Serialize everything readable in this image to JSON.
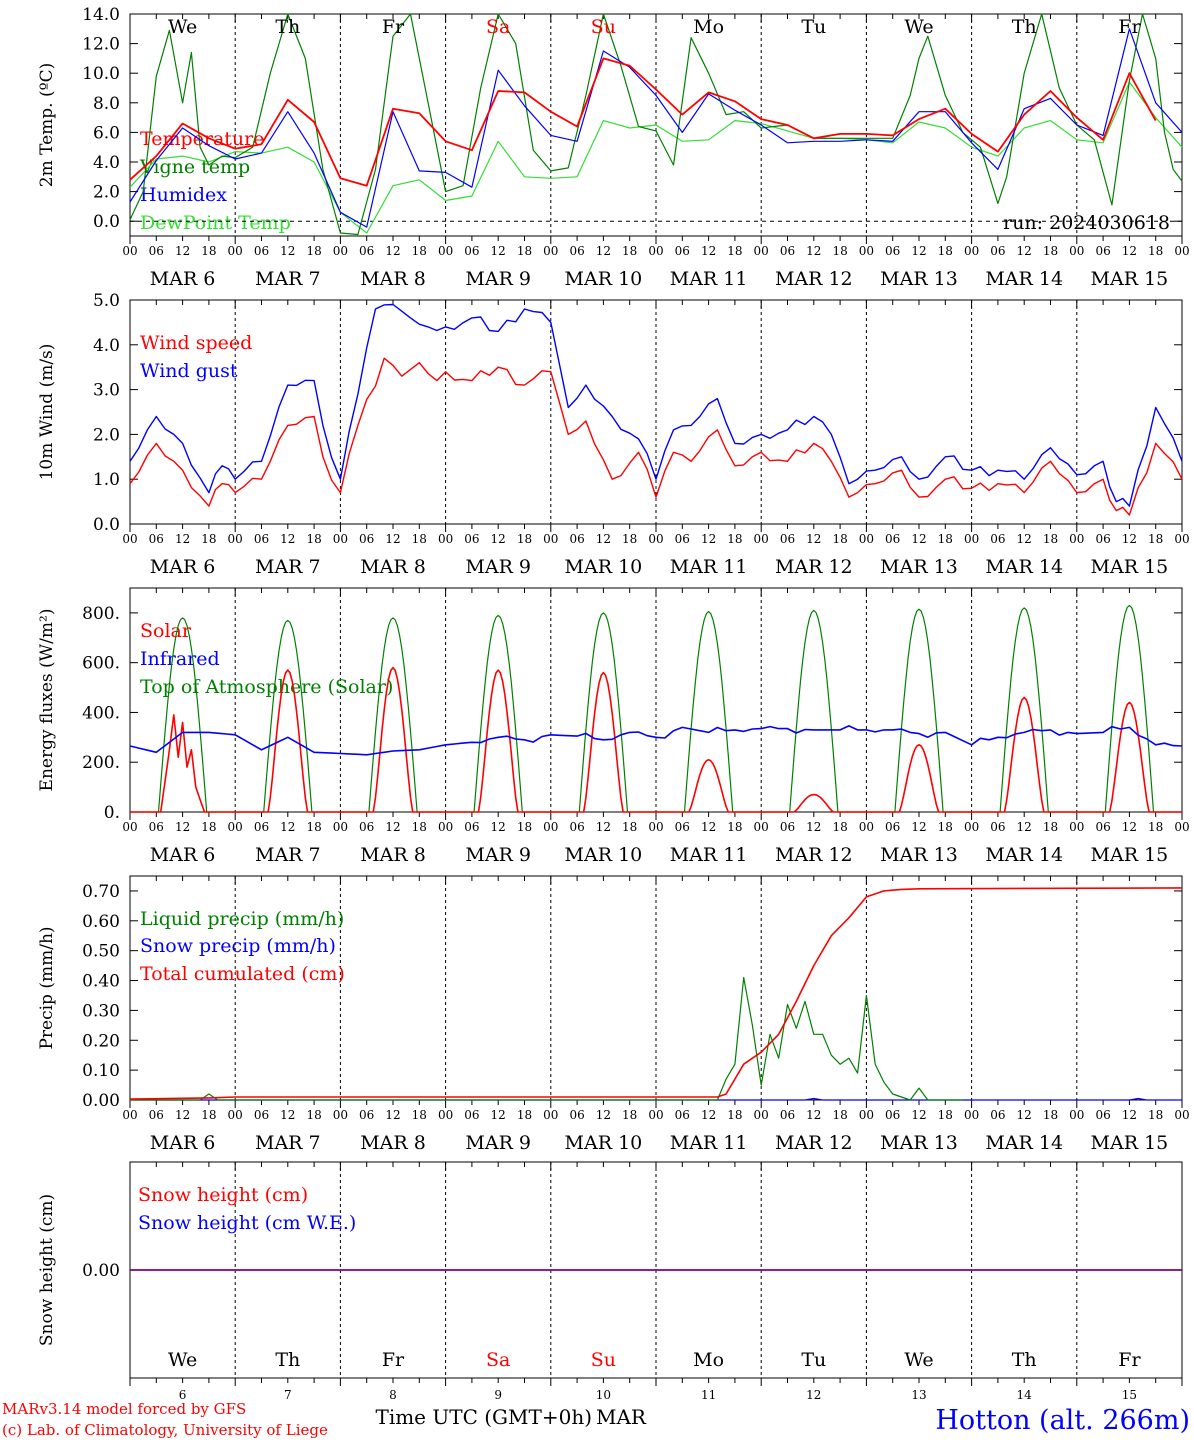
{
  "run_label": "run: 2024030618",
  "location": "Hotton (alt. 266m)",
  "credits": [
    "MARv3.14 model forced by GFS",
    "(c) Lab. of Climatology, University of Liege"
  ],
  "xaxis": {
    "title": "Time UTC (GMT+0h)",
    "month": "MAR",
    "hour_ticks": [
      "00",
      "06",
      "12",
      "18"
    ],
    "final_tick": "00",
    "dates": [
      "MAR  6",
      "MAR  7",
      "MAR  8",
      "MAR  9",
      "MAR 10",
      "MAR 11",
      "MAR 12",
      "MAR 13",
      "MAR 14",
      "MAR 15"
    ],
    "day_numbers": [
      "6",
      "7",
      "8",
      "9",
      "10",
      "11",
      "12",
      "13",
      "14",
      "15"
    ],
    "weekdays": [
      "We",
      "Th",
      "Fr",
      "Sa",
      "Su",
      "Mo",
      "Tu",
      "We",
      "Th",
      "Fr"
    ],
    "weekday_colors": [
      "#000000",
      "#000000",
      "#000000",
      "#ff0000",
      "#ff0000",
      "#000000",
      "#000000",
      "#000000",
      "#000000",
      "#000000"
    ]
  },
  "colors": {
    "red": "#ff0000",
    "green": "#008000",
    "blue": "#0000ff",
    "lightgreen": "#33dd33",
    "purple": "#800080"
  },
  "chart_data": [
    {
      "type": "line",
      "ylabel": "2m Temp. (ºC)",
      "ylim": [
        -1,
        14
      ],
      "yticks": [
        "14.0",
        "12.0",
        "10.0",
        "8.0",
        "6.0",
        "4.0",
        "2.0",
        "0.0"
      ],
      "ytick_values": [
        14,
        12,
        10,
        8,
        6,
        4,
        2,
        0
      ],
      "x_unit": "hours from MAR 6 00 UTC",
      "dashed_zero": true,
      "series": [
        {
          "name": "Temperature",
          "color": "#ff0000",
          "x": [
            0,
            6,
            12,
            18,
            24,
            30,
            36,
            42,
            48,
            54,
            60,
            66,
            72,
            78,
            84,
            90,
            96,
            102,
            108,
            114,
            120,
            126,
            132,
            138,
            144,
            150,
            156,
            162,
            168,
            174,
            180,
            186,
            192,
            198,
            204,
            210,
            216,
            222,
            228,
            234
          ],
          "y": [
            2.8,
            4.4,
            6.6,
            5.6,
            4.9,
            5.2,
            8.2,
            6.7,
            2.9,
            2.4,
            7.6,
            7.3,
            5.4,
            4.8,
            8.8,
            8.7,
            7.4,
            6.4,
            11.0,
            10.5,
            8.9,
            7.2,
            8.7,
            8.1,
            6.9,
            6.5,
            5.6,
            5.9,
            5.9,
            5.8,
            6.9,
            7.6,
            5.9,
            4.7,
            7.2,
            8.8,
            7.0,
            5.5,
            10.0,
            6.8
          ]
        },
        {
          "name": "Vigne temp",
          "color": "#008000",
          "x": [
            0,
            3,
            6,
            9,
            12,
            14,
            16,
            18,
            21,
            24,
            28,
            32,
            36,
            40,
            44,
            48,
            52,
            56,
            60,
            64,
            68,
            72,
            76,
            80,
            84,
            88,
            92,
            96,
            100,
            104,
            108,
            112,
            116,
            120,
            124,
            128,
            132,
            136,
            140,
            144,
            150,
            156,
            162,
            168,
            174,
            178,
            180,
            182,
            186,
            190,
            194,
            198,
            200,
            204,
            208,
            212,
            216,
            220,
            224,
            228,
            231,
            234,
            236,
            238,
            240
          ],
          "y": [
            0.1,
            2.0,
            9.8,
            12.9,
            8.0,
            11.4,
            5.0,
            3.8,
            4.4,
            4.3,
            5.0,
            10.0,
            14.0,
            11.0,
            3.5,
            -0.8,
            -0.9,
            3.5,
            12.5,
            14.0,
            8.0,
            2.0,
            2.4,
            9.0,
            14.0,
            12.0,
            4.8,
            3.4,
            3.6,
            8.5,
            14.0,
            10.5,
            6.4,
            6.1,
            3.8,
            12.4,
            10.0,
            7.2,
            7.4,
            6.3,
            6.5,
            5.6,
            5.6,
            5.6,
            5.6,
            8.5,
            11.0,
            12.5,
            8.5,
            6.0,
            5.0,
            1.2,
            3.0,
            10.0,
            14.0,
            9.0,
            6.5,
            5.5,
            1.1,
            9.5,
            14.0,
            11.0,
            6.0,
            3.5,
            2.7
          ]
        },
        {
          "name": "Humidex",
          "color": "#0000ff",
          "x": [
            0,
            6,
            12,
            18,
            24,
            30,
            36,
            42,
            48,
            54,
            60,
            66,
            72,
            78,
            84,
            90,
            96,
            102,
            108,
            114,
            120,
            126,
            132,
            138,
            144,
            150,
            156,
            162,
            168,
            174,
            180,
            186,
            192,
            198,
            204,
            210,
            216,
            222,
            228,
            234,
            240
          ],
          "y": [
            1.3,
            4.1,
            6.3,
            5.1,
            4.2,
            4.6,
            7.4,
            4.6,
            0.6,
            -0.4,
            7.4,
            3.4,
            3.3,
            2.3,
            10.2,
            7.8,
            5.8,
            5.4,
            11.5,
            10.4,
            8.5,
            6.0,
            8.6,
            7.5,
            6.5,
            5.3,
            5.4,
            5.4,
            5.5,
            5.4,
            7.4,
            7.4,
            5.3,
            3.5,
            7.6,
            8.3,
            6.5,
            5.8,
            13.0,
            8.0,
            6.0
          ]
        },
        {
          "name": "DewPoint Temp",
          "color": "#33dd33",
          "x": [
            0,
            6,
            12,
            18,
            24,
            30,
            36,
            42,
            48,
            54,
            60,
            66,
            72,
            78,
            84,
            90,
            96,
            102,
            108,
            114,
            120,
            126,
            132,
            138,
            144,
            150,
            156,
            162,
            168,
            174,
            180,
            186,
            192,
            198,
            204,
            210,
            216,
            222,
            228,
            234,
            240
          ],
          "y": [
            2.3,
            4.2,
            4.4,
            4.0,
            4.7,
            4.6,
            5.0,
            4.0,
            0.6,
            -0.8,
            2.4,
            2.8,
            1.4,
            1.7,
            5.4,
            3.0,
            2.9,
            3.0,
            6.8,
            6.3,
            6.5,
            5.4,
            5.5,
            6.8,
            6.6,
            6.1,
            5.6,
            5.6,
            5.5,
            5.3,
            6.7,
            6.3,
            5.0,
            4.4,
            6.3,
            6.8,
            5.5,
            5.3,
            9.4,
            7.0,
            5.0
          ]
        }
      ]
    },
    {
      "type": "line",
      "ylabel": "10m Wind (m/s)",
      "ylim": [
        0,
        5
      ],
      "yticks": [
        "5.0",
        "4.0",
        "3.0",
        "2.0",
        "1.0",
        "0.0"
      ],
      "ytick_values": [
        5,
        4,
        3,
        2,
        1,
        0
      ],
      "x_unit": "hours from MAR 6 00 UTC",
      "series": [
        {
          "name": "Wind speed",
          "color": "#ff0000",
          "x": [
            0,
            6,
            12,
            18,
            21,
            24,
            30,
            36,
            42,
            44,
            48,
            52,
            58,
            62,
            66,
            70,
            72,
            78,
            84,
            90,
            96,
            100,
            104,
            110,
            116,
            120,
            124,
            128,
            134,
            138,
            144,
            150,
            156,
            160,
            164,
            170,
            176,
            180,
            186,
            192,
            198,
            204,
            210,
            216,
            222,
            225,
            228,
            234,
            240
          ],
          "y": [
            0.9,
            1.8,
            1.2,
            0.4,
            0.9,
            0.7,
            1.0,
            2.2,
            2.4,
            1.5,
            0.7,
            2.2,
            3.7,
            3.3,
            3.6,
            3.2,
            3.4,
            3.2,
            3.5,
            3.1,
            3.4,
            2.0,
            2.3,
            1.0,
            1.6,
            0.6,
            1.6,
            1.4,
            2.1,
            1.3,
            1.6,
            1.4,
            1.8,
            1.4,
            0.6,
            0.9,
            1.2,
            0.6,
            1.0,
            0.8,
            0.9,
            0.7,
            1.4,
            0.7,
            1.0,
            0.3,
            0.2,
            1.8,
            1.0
          ]
        },
        {
          "name": "Wind gust",
          "color": "#0000ff",
          "x": [
            0,
            6,
            12,
            18,
            21,
            24,
            30,
            36,
            42,
            44,
            48,
            52,
            56,
            60,
            64,
            68,
            72,
            78,
            84,
            90,
            96,
            100,
            104,
            110,
            116,
            120,
            124,
            128,
            134,
            138,
            144,
            150,
            156,
            160,
            164,
            170,
            176,
            180,
            186,
            192,
            198,
            204,
            210,
            216,
            222,
            225,
            228,
            234,
            240
          ],
          "y": [
            1.4,
            2.4,
            1.8,
            0.7,
            1.3,
            1.0,
            1.4,
            3.1,
            3.2,
            2.2,
            1.0,
            2.9,
            4.8,
            4.9,
            4.6,
            4.4,
            4.4,
            4.6,
            4.3,
            4.8,
            4.5,
            2.6,
            3.1,
            2.4,
            1.9,
            1.0,
            2.1,
            2.2,
            2.8,
            1.8,
            2.0,
            2.1,
            2.4,
            2.0,
            0.9,
            1.2,
            1.5,
            1.0,
            1.5,
            1.2,
            1.2,
            1.0,
            1.7,
            1.1,
            1.4,
            0.5,
            0.4,
            2.6,
            1.4
          ]
        }
      ]
    },
    {
      "type": "line",
      "ylabel": "Energy fluxes (W/m²)",
      "ylim": [
        0,
        900
      ],
      "yticks": [
        "800.",
        "600.",
        "400.",
        "200.",
        "0."
      ],
      "ytick_values": [
        800,
        600,
        400,
        200,
        0
      ],
      "x_unit": "hours from MAR 6 00 UTC",
      "series": [
        {
          "name": "Solar",
          "color": "#ff0000",
          "peaks": [
            390,
            570,
            580,
            570,
            560,
            210,
            70,
            270,
            460,
            440
          ],
          "peak_shape": [
            [
              7,
              0
            ],
            [
              9,
              250
            ],
            [
              10,
              390
            ],
            [
              11,
              220
            ],
            [
              12,
              360
            ],
            [
              13,
              180
            ],
            [
              14,
              250
            ],
            [
              15,
              100
            ],
            [
              17,
              0
            ]
          ]
        },
        {
          "name": "Infrared",
          "color": "#0000ff",
          "x": [
            0,
            6,
            12,
            18,
            24,
            30,
            36,
            42,
            48,
            54,
            60,
            66,
            72,
            78,
            84,
            90,
            96,
            102,
            108,
            114,
            120,
            126,
            132,
            138,
            144,
            150,
            156,
            162,
            168,
            174,
            180,
            186,
            192,
            198,
            204,
            210,
            216,
            222,
            228,
            234,
            240
          ],
          "y": [
            265,
            240,
            320,
            320,
            310,
            250,
            300,
            240,
            235,
            230,
            245,
            250,
            270,
            280,
            300,
            290,
            310,
            305,
            290,
            320,
            300,
            340,
            320,
            330,
            335,
            335,
            330,
            330,
            330,
            330,
            315,
            320,
            270,
            300,
            320,
            330,
            315,
            320,
            340,
            270,
            265
          ]
        },
        {
          "name": "Top of Atmosphere (Solar)",
          "color": "#008000",
          "peaks": [
            780,
            770,
            780,
            790,
            800,
            805,
            810,
            815,
            820,
            830
          ],
          "window": [
            6.5,
            17.5
          ]
        }
      ]
    },
    {
      "type": "line",
      "ylabel": "Precip (mm/h)",
      "ylim": [
        0,
        0.75
      ],
      "yticks": [
        "0.70",
        "0.60",
        "0.50",
        "0.40",
        "0.30",
        "0.20",
        "0.10",
        "0.00"
      ],
      "ytick_values": [
        0.7,
        0.6,
        0.5,
        0.4,
        0.3,
        0.2,
        0.1,
        0
      ],
      "x_unit": "hours from MAR 6 00 UTC",
      "series": [
        {
          "name": "Liquid precip (mm/h)",
          "color": "#008000",
          "x": [
            0,
            16,
            18,
            20,
            24,
            120,
            134,
            136,
            138,
            140,
            142,
            144,
            146,
            148,
            150,
            152,
            154,
            156,
            158,
            160,
            162,
            164,
            166,
            168,
            170,
            172,
            174,
            176,
            178,
            180,
            182,
            190
          ],
          "y": [
            0,
            0,
            0.02,
            0,
            0,
            0,
            0,
            0.07,
            0.12,
            0.41,
            0.25,
            0.05,
            0.22,
            0.14,
            0.32,
            0.24,
            0.33,
            0.22,
            0.22,
            0.15,
            0.12,
            0.14,
            0.09,
            0.35,
            0.12,
            0.06,
            0.02,
            0.01,
            0,
            0.04,
            0,
            0
          ]
        },
        {
          "name": "Snow precip (mm/h)",
          "color": "#0000ff",
          "x": [
            0,
            154,
            156,
            158,
            228,
            230,
            232,
            240
          ],
          "y": [
            0,
            0,
            0.005,
            0,
            0,
            0.005,
            0,
            0
          ]
        },
        {
          "name": "Total cumulated (cm)",
          "color": "#ff0000",
          "x": [
            0,
            18,
            24,
            134,
            136,
            140,
            144,
            148,
            152,
            156,
            160,
            164,
            168,
            172,
            176,
            180,
            240
          ],
          "y": [
            0.003,
            0.007,
            0.01,
            0.01,
            0.02,
            0.12,
            0.16,
            0.22,
            0.33,
            0.45,
            0.55,
            0.61,
            0.68,
            0.7,
            0.705,
            0.707,
            0.71
          ]
        }
      ]
    },
    {
      "type": "line",
      "ylabel": "Snow height (cm)",
      "yticks": [
        "0.00"
      ],
      "ytick_values": [
        0
      ],
      "series": [
        {
          "name": "Snow height (cm)",
          "color": "#ff0000",
          "x": [
            0,
            240
          ],
          "y": [
            0,
            0
          ]
        },
        {
          "name": "Snow height (cm W.E.)",
          "color": "#0000ff",
          "x": [
            0,
            240
          ],
          "y": [
            0,
            0
          ]
        }
      ]
    }
  ]
}
